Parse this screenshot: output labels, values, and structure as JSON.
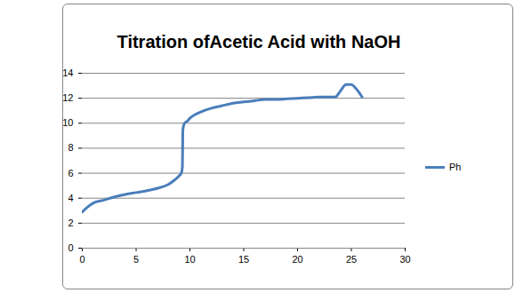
{
  "chart_data": {
    "type": "line",
    "title": "Titration ofAcetic Acid with NaOH",
    "x": [
      0,
      0.5,
      1,
      2,
      3,
      4,
      5,
      6,
      7,
      8,
      8.5,
      9,
      9.2,
      9.3,
      9.35,
      9.5,
      9.8,
      10,
      10.5,
      11,
      12,
      13,
      14,
      15,
      16,
      17,
      18,
      19,
      20,
      21,
      22,
      23,
      23.5,
      24,
      24.5,
      25,
      25.5,
      26
    ],
    "series": [
      {
        "name": "Ph",
        "color": "#4a7ebb",
        "values": [
          2.9,
          3.3,
          3.6,
          3.85,
          4.1,
          4.3,
          4.45,
          4.6,
          4.8,
          5.1,
          5.4,
          5.8,
          6.0,
          6.5,
          9.5,
          10.0,
          10.2,
          10.4,
          10.7,
          10.9,
          11.2,
          11.4,
          11.6,
          11.7,
          11.8,
          11.9,
          11.9,
          11.95,
          12.0,
          12.05,
          12.1,
          12.1,
          12.1,
          12.6,
          13.1,
          13.1,
          12.7,
          12.1
        ]
      }
    ],
    "xlim": [
      0,
      30
    ],
    "xticks": [
      0,
      5,
      10,
      15,
      20,
      25,
      30
    ],
    "ylim": [
      0,
      14
    ],
    "yticks": [
      0,
      2,
      4,
      6,
      8,
      10,
      12,
      14
    ],
    "grid": true,
    "legend": "right"
  }
}
